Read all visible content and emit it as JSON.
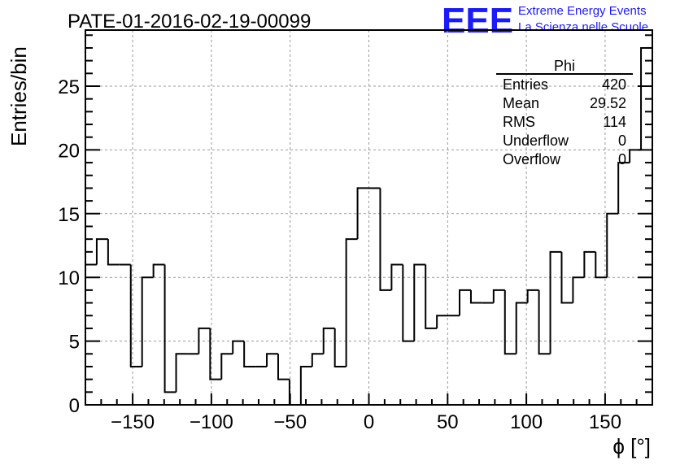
{
  "chart_data": {
    "type": "histogram",
    "title": "PATE-01-2016-02-19-00099",
    "xlabel": "ϕ [°]",
    "ylabel": "Entries/bin",
    "xlim": [
      -180,
      180
    ],
    "ylim": [
      0,
      29.4
    ],
    "grid": true,
    "bin_width": 7.2,
    "bin_edges_start": -180,
    "counts": [
      11,
      13,
      11,
      11,
      3,
      10,
      11,
      1,
      4,
      4,
      6,
      2,
      4,
      5,
      3,
      3,
      4,
      2,
      0,
      3,
      4,
      6,
      3,
      13,
      17,
      17,
      9,
      11,
      5,
      11,
      6,
      7,
      7,
      9,
      8,
      8,
      9,
      4,
      8,
      9,
      4,
      12,
      8,
      10,
      12,
      10,
      15,
      19,
      20,
      28
    ],
    "x_ticks": [
      -150,
      -100,
      -50,
      0,
      50,
      100,
      150
    ],
    "x_tick_labels": [
      "−150",
      "−100",
      "−50",
      "0",
      "50",
      "100",
      "150"
    ],
    "y_ticks": [
      0,
      5,
      10,
      15,
      20,
      25
    ],
    "y_tick_labels": [
      "0",
      "5",
      "10",
      "15",
      "20",
      "25"
    ],
    "stats_box": {
      "title": "Phi",
      "rows": [
        {
          "label": "Entries",
          "value": "420"
        },
        {
          "label": "Mean",
          "value": "29.52"
        },
        {
          "label": "RMS",
          "value": "114"
        },
        {
          "label": "Underflow",
          "value": "0"
        },
        {
          "label": "Overflow",
          "value": "0"
        }
      ]
    }
  },
  "logo": {
    "mark": "EEE",
    "line1": "Extreme Energy Events",
    "line2": "La Scienza nelle Scuole",
    "color": "#1a1aff"
  }
}
